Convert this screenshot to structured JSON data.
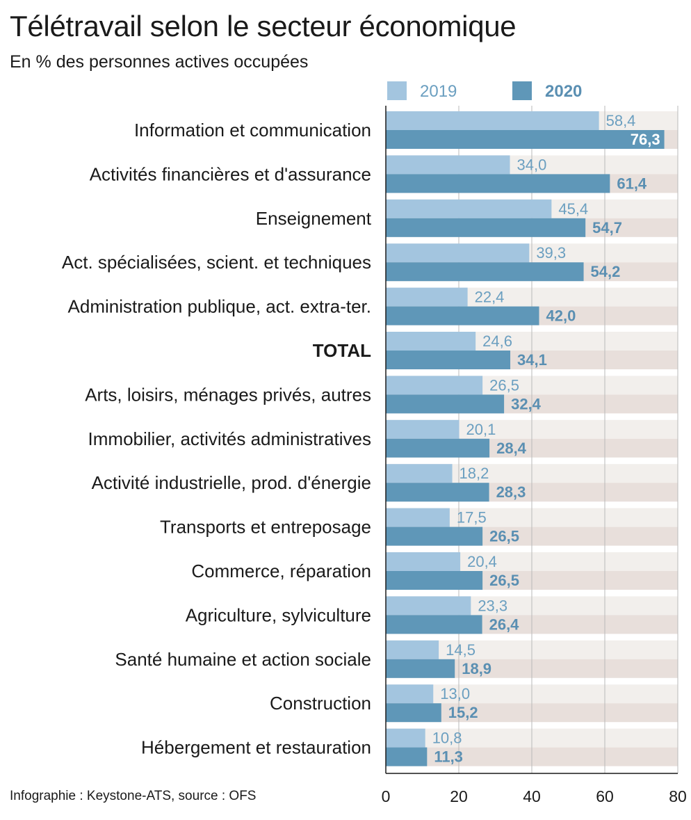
{
  "title": "Télétravail selon le secteur économique",
  "subtitle": "En % des personnes actives occupées",
  "source": "Infographie : Keystone-ATS, source : OFS",
  "colors": {
    "bar_2019": "#a3c5df",
    "bar_2020": "#5f97b8",
    "track_2019": "#f2efec",
    "track_2020": "#e8dfdb",
    "gridline": "#b8b8b8"
  },
  "chart_data": {
    "type": "bar",
    "orientation": "horizontal",
    "xlim": [
      0,
      80
    ],
    "xticks": [
      "0",
      "20",
      "40",
      "60",
      "80"
    ],
    "grid": true,
    "legend_placement": "top",
    "categories": [
      "Information et communication",
      "Activités financières et d'assurance",
      "Enseignement",
      "Act. spécialisées, scient. et techniques",
      "Administration publique, act. extra-ter.",
      "TOTAL",
      "Arts, loisirs, ménages privés, autres",
      "Immobilier, activités administratives",
      "Activité industrielle, prod. d'énergie",
      "Transports et entreposage",
      "Commerce, réparation",
      "Agriculture, sylviculture",
      "Santé humaine et action sociale",
      "Construction",
      "Hébergement et restauration"
    ],
    "series": [
      {
        "name": "2019",
        "values": [
          58.4,
          34.0,
          45.4,
          39.3,
          22.4,
          24.6,
          26.5,
          20.1,
          18.2,
          17.5,
          20.4,
          23.3,
          14.5,
          13.0,
          10.8
        ],
        "labels": [
          "58,4",
          "34,0",
          "45,4",
          "39,3",
          "22,4",
          "24,6",
          "26,5",
          "20,1",
          "18,2",
          "17,5",
          "20,4",
          "23,3",
          "14,5",
          "13,0",
          "10,8"
        ]
      },
      {
        "name": "2020",
        "values": [
          76.3,
          61.4,
          54.7,
          54.2,
          42.0,
          34.1,
          32.4,
          28.4,
          28.3,
          26.5,
          26.5,
          26.4,
          18.9,
          15.2,
          11.3
        ],
        "labels": [
          "76,3",
          "61,4",
          "54,7",
          "54,2",
          "42,0",
          "34,1",
          "32,4",
          "28,4",
          "28,3",
          "26,5",
          "26,5",
          "26,4",
          "18,9",
          "15,2",
          "11,3"
        ]
      }
    ]
  }
}
